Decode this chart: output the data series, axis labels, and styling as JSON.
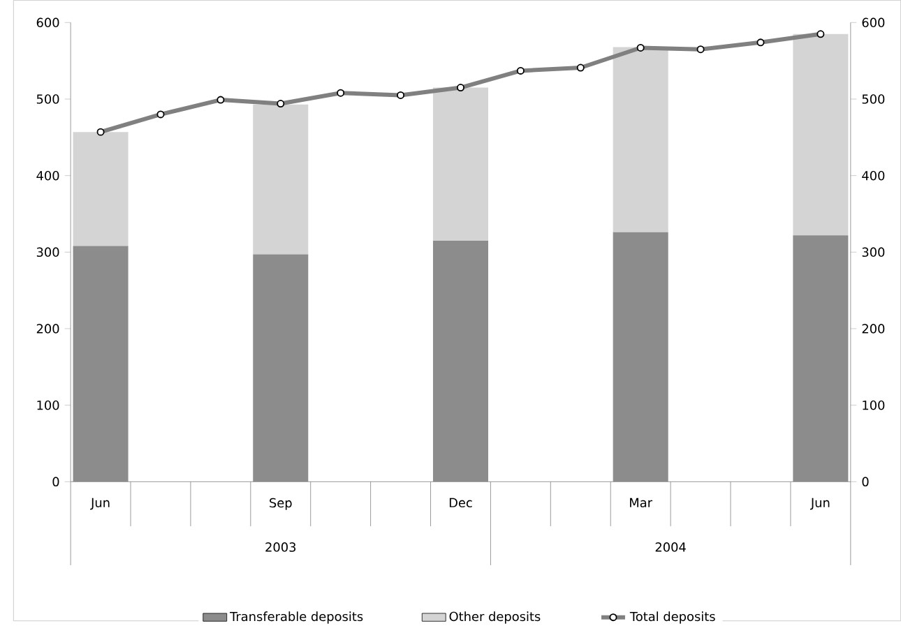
{
  "chart_data": {
    "type": "bar",
    "stacked": true,
    "categories": [
      "Jun",
      null,
      null,
      "Sep",
      null,
      null,
      "Dec",
      null,
      null,
      "Mar",
      null,
      null,
      "Jun"
    ],
    "series": [
      {
        "name": "Transferable deposits",
        "color": "#8c8c8c",
        "values": [
          308,
          null,
          null,
          297,
          null,
          null,
          315,
          null,
          null,
          326,
          null,
          null,
          322
        ]
      },
      {
        "name": "Other deposits",
        "color": "#d4d4d4",
        "values": [
          149,
          null,
          null,
          196,
          null,
          null,
          200,
          null,
          null,
          242,
          null,
          null,
          263
        ]
      },
      {
        "name": "Total deposits",
        "type": "line",
        "color": "#808080",
        "marker": "circle",
        "values": [
          457,
          480,
          499,
          494,
          508,
          505,
          515,
          537,
          541,
          567,
          565,
          574,
          585
        ]
      }
    ],
    "ylim": [
      0,
      600
    ],
    "yticks": [
      0,
      100,
      200,
      300,
      400,
      500,
      600
    ],
    "y2lim": [
      0,
      600
    ],
    "y2ticks": [
      0,
      100,
      200,
      300,
      400,
      500,
      600
    ],
    "annotations": [
      "2003",
      "2004"
    ],
    "legend": "bottom",
    "grid": false
  }
}
